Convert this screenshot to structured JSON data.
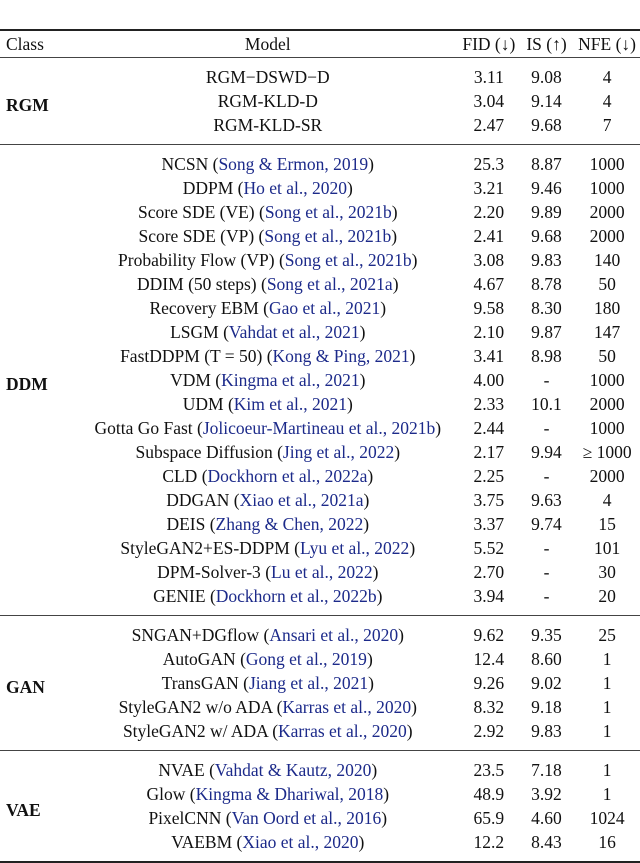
{
  "columns": [
    "Class",
    "Model",
    "FID (↓)",
    "IS (↑)",
    "NFE (↓)"
  ],
  "link_color": "#1c2a8a",
  "groups": [
    {
      "class": "RGM",
      "rows": [
        {
          "model": "RGM−DSWD−D",
          "cite": "",
          "fid": "3.11",
          "is": "9.08",
          "nfe": "4"
        },
        {
          "model": "RGM-KLD-D",
          "cite": "",
          "fid": "3.04",
          "is": "9.14",
          "nfe": "4"
        },
        {
          "model": "RGM-KLD-SR",
          "cite": "",
          "fid": "2.47",
          "is": "9.68",
          "nfe": "7"
        }
      ]
    },
    {
      "class": "DDM",
      "rows": [
        {
          "model": "NCSN",
          "cite": "Song & Ermon, 2019",
          "fid": "25.3",
          "is": "8.87",
          "nfe": "1000"
        },
        {
          "model": "DDPM",
          "cite": "Ho et al., 2020",
          "fid": "3.21",
          "is": "9.46",
          "nfe": "1000"
        },
        {
          "model": "Score SDE (VE)",
          "cite": "Song et al., 2021b",
          "fid": "2.20",
          "is": "9.89",
          "nfe": "2000"
        },
        {
          "model": "Score SDE (VP)",
          "cite": "Song et al., 2021b",
          "fid": "2.41",
          "is": "9.68",
          "nfe": "2000"
        },
        {
          "model": "Probability Flow (VP)",
          "cite": "Song et al., 2021b",
          "fid": "3.08",
          "is": "9.83",
          "nfe": "140"
        },
        {
          "model": "DDIM (50 steps)",
          "cite": "Song et al., 2021a",
          "fid": "4.67",
          "is": "8.78",
          "nfe": "50"
        },
        {
          "model": "Recovery EBM",
          "cite": "Gao et al., 2021",
          "fid": "9.58",
          "is": "8.30",
          "nfe": "180"
        },
        {
          "model": "LSGM",
          "cite": "Vahdat et al., 2021",
          "fid": "2.10",
          "is": "9.87",
          "nfe": "147"
        },
        {
          "model": "FastDDPM (T = 50)",
          "cite": "Kong & Ping, 2021",
          "fid": "3.41",
          "is": "8.98",
          "nfe": "50"
        },
        {
          "model": "VDM",
          "cite": "Kingma et al., 2021",
          "fid": "4.00",
          "is": "-",
          "nfe": "1000"
        },
        {
          "model": "UDM",
          "cite": "Kim et al., 2021",
          "fid": "2.33",
          "is": "10.1",
          "nfe": "2000"
        },
        {
          "model": "Gotta Go Fast",
          "cite": "Jolicoeur-Martineau et al., 2021b",
          "fid": "2.44",
          "is": "-",
          "nfe": "1000"
        },
        {
          "model": "Subspace Diffusion",
          "cite": "Jing et al., 2022",
          "fid": "2.17",
          "is": "9.94",
          "nfe": "≥ 1000"
        },
        {
          "model": "CLD",
          "cite": "Dockhorn et al., 2022a",
          "fid": "2.25",
          "is": "-",
          "nfe": "2000"
        },
        {
          "model": "DDGAN",
          "cite": "Xiao et al., 2021a",
          "fid": "3.75",
          "is": "9.63",
          "nfe": "4"
        },
        {
          "model": "DEIS",
          "cite": "Zhang & Chen, 2022",
          "fid": "3.37",
          "is": "9.74",
          "nfe": "15"
        },
        {
          "model": "StyleGAN2+ES-DDPM",
          "cite": "Lyu et al., 2022",
          "fid": "5.52",
          "is": "-",
          "nfe": "101"
        },
        {
          "model": "DPM-Solver-3",
          "cite": "Lu et al., 2022",
          "fid": "2.70",
          "is": "-",
          "nfe": "30"
        },
        {
          "model": "GENIE",
          "cite": "Dockhorn et al., 2022b",
          "fid": "3.94",
          "is": "-",
          "nfe": "20"
        }
      ]
    },
    {
      "class": "GAN",
      "rows": [
        {
          "model": "SNGAN+DGflow",
          "cite": "Ansari et al., 2020",
          "fid": "9.62",
          "is": "9.35",
          "nfe": "25"
        },
        {
          "model": "AutoGAN",
          "cite": "Gong et al., 2019",
          "fid": "12.4",
          "is": "8.60",
          "nfe": "1"
        },
        {
          "model": "TransGAN",
          "cite": "Jiang et al., 2021",
          "fid": "9.26",
          "is": "9.02",
          "nfe": "1"
        },
        {
          "model": "StyleGAN2 w/o ADA",
          "cite": "Karras et al., 2020",
          "fid": "8.32",
          "is": "9.18",
          "nfe": "1"
        },
        {
          "model": "StyleGAN2 w/ ADA",
          "cite": "Karras et al., 2020",
          "fid": "2.92",
          "is": "9.83",
          "nfe": "1"
        }
      ]
    },
    {
      "class": "VAE",
      "rows": [
        {
          "model": "NVAE",
          "cite": "Vahdat & Kautz, 2020",
          "fid": "23.5",
          "is": "7.18",
          "nfe": "1"
        },
        {
          "model": "Glow",
          "cite": "Kingma & Dhariwal, 2018",
          "fid": "48.9",
          "is": "3.92",
          "nfe": "1"
        },
        {
          "model": "PixelCNN",
          "cite": "Van Oord et al., 2016",
          "fid": "65.9",
          "is": "4.60",
          "nfe": "1024"
        },
        {
          "model": "VAEBM",
          "cite": "Xiao et al., 2020",
          "fid": "12.2",
          "is": "8.43",
          "nfe": "16"
        }
      ]
    }
  ]
}
